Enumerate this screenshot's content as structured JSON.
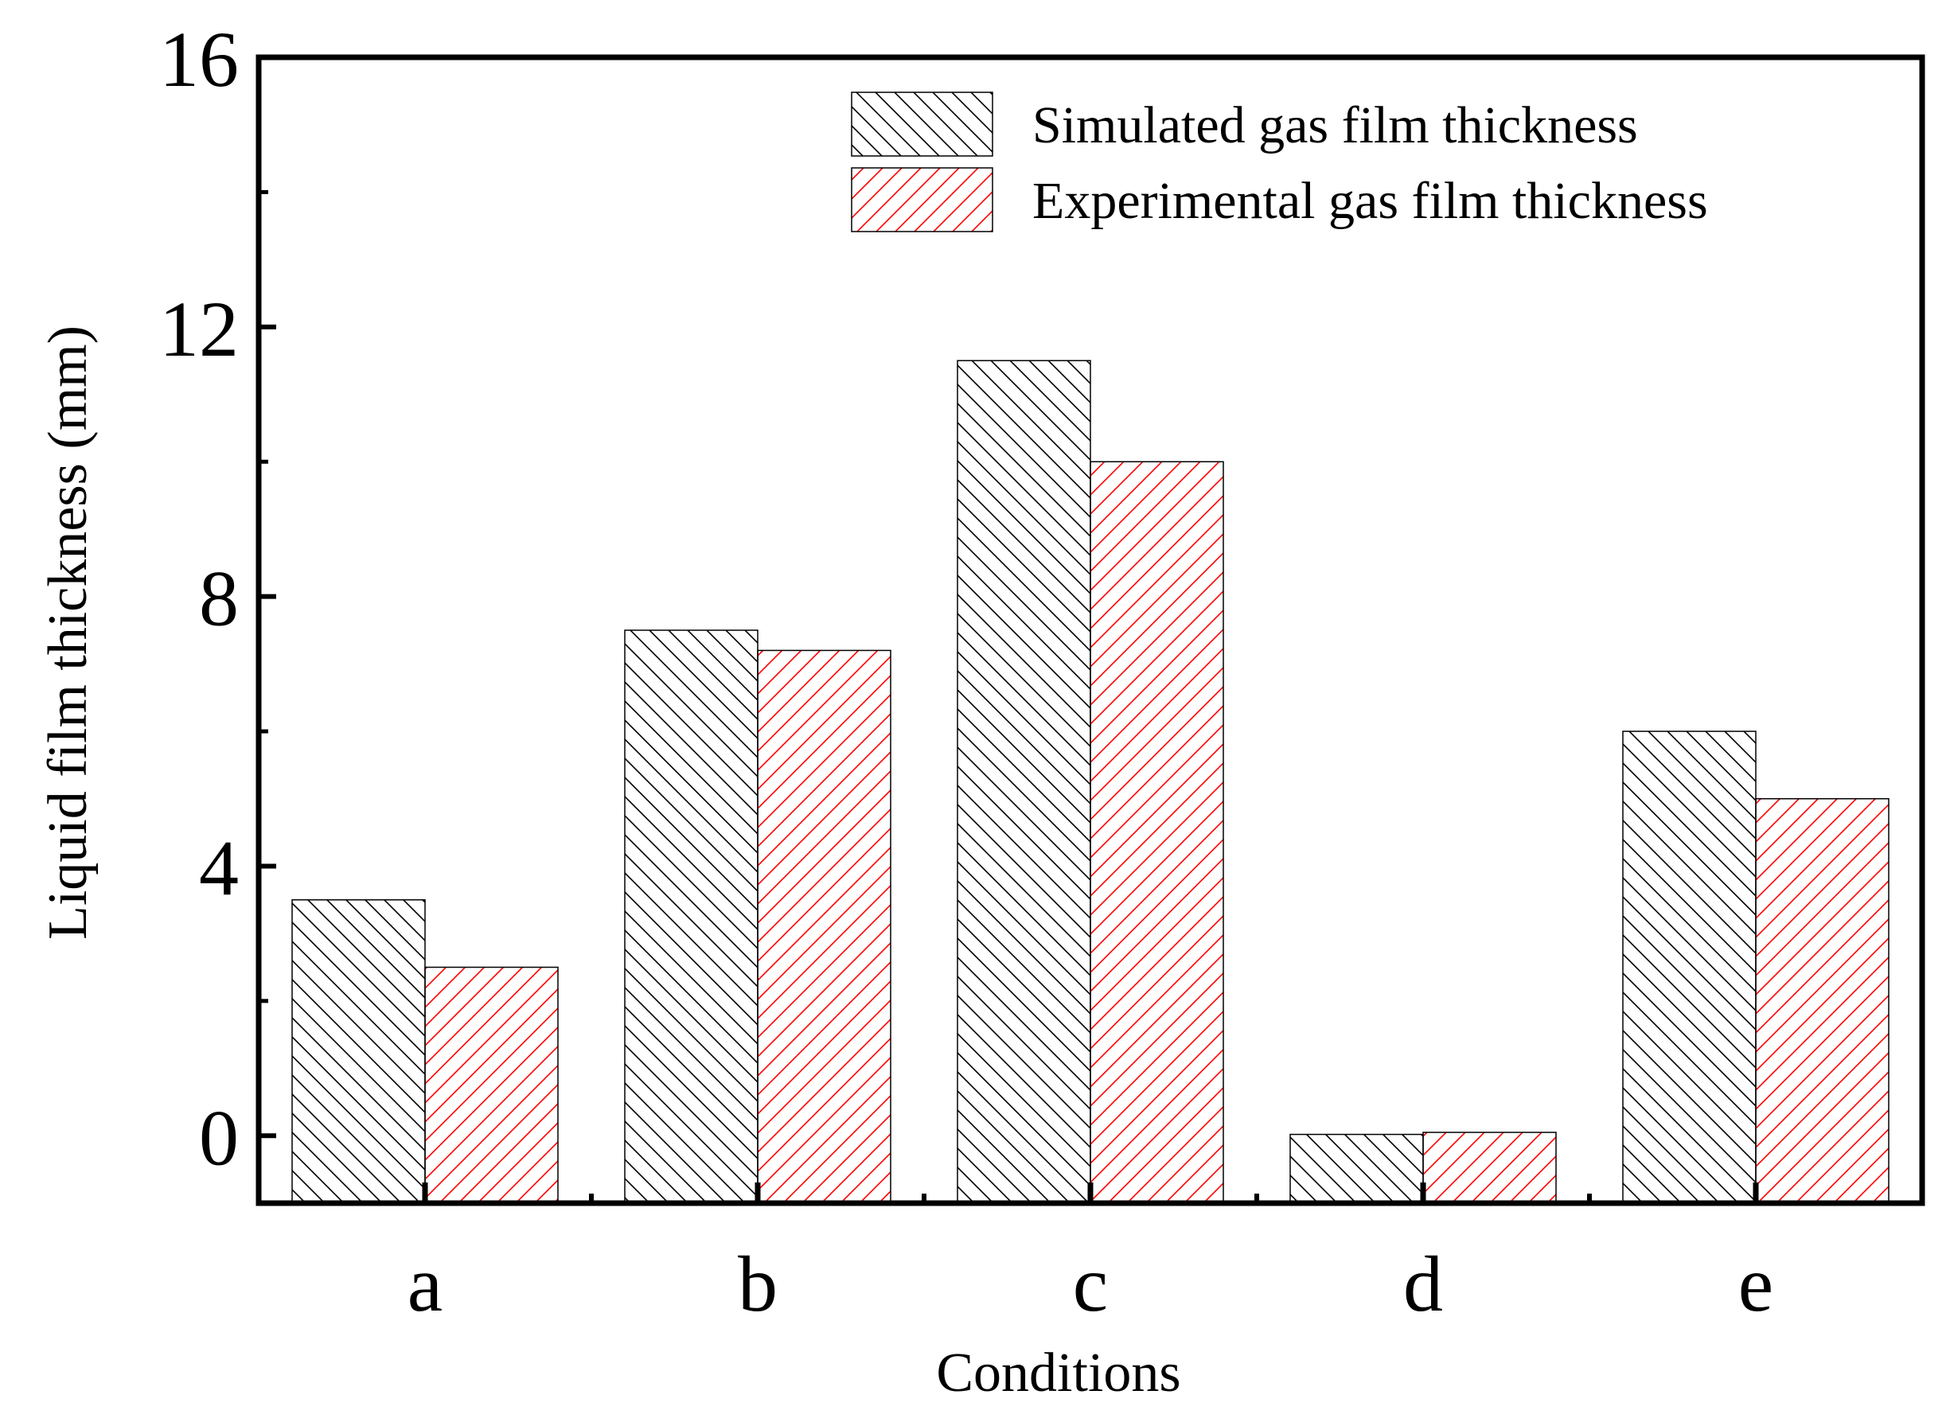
{
  "chart_data": {
    "type": "bar",
    "title": "",
    "xlabel": "Conditions",
    "ylabel": "Liquid film thickness (mm)",
    "categories": [
      "a",
      "b",
      "c",
      "d",
      "e"
    ],
    "series": [
      {
        "name": "Simulated gas film thickness",
        "values": [
          3.5,
          7.5,
          11.5,
          0.02,
          6.0
        ],
        "color": "#000000",
        "pattern": "hatch-backslash"
      },
      {
        "name": "Experimental gas film thickness",
        "values": [
          2.5,
          7.2,
          10.0,
          0.05,
          5.0
        ],
        "color": "#ff0000",
        "pattern": "hatch-forwardslash"
      }
    ],
    "ylim": [
      -1,
      16
    ],
    "yticks": [
      "0",
      "4",
      "8",
      "12",
      "16"
    ],
    "ytick_values": [
      0,
      4,
      8,
      12,
      16
    ],
    "grid": false,
    "legend_position": "top-right"
  }
}
